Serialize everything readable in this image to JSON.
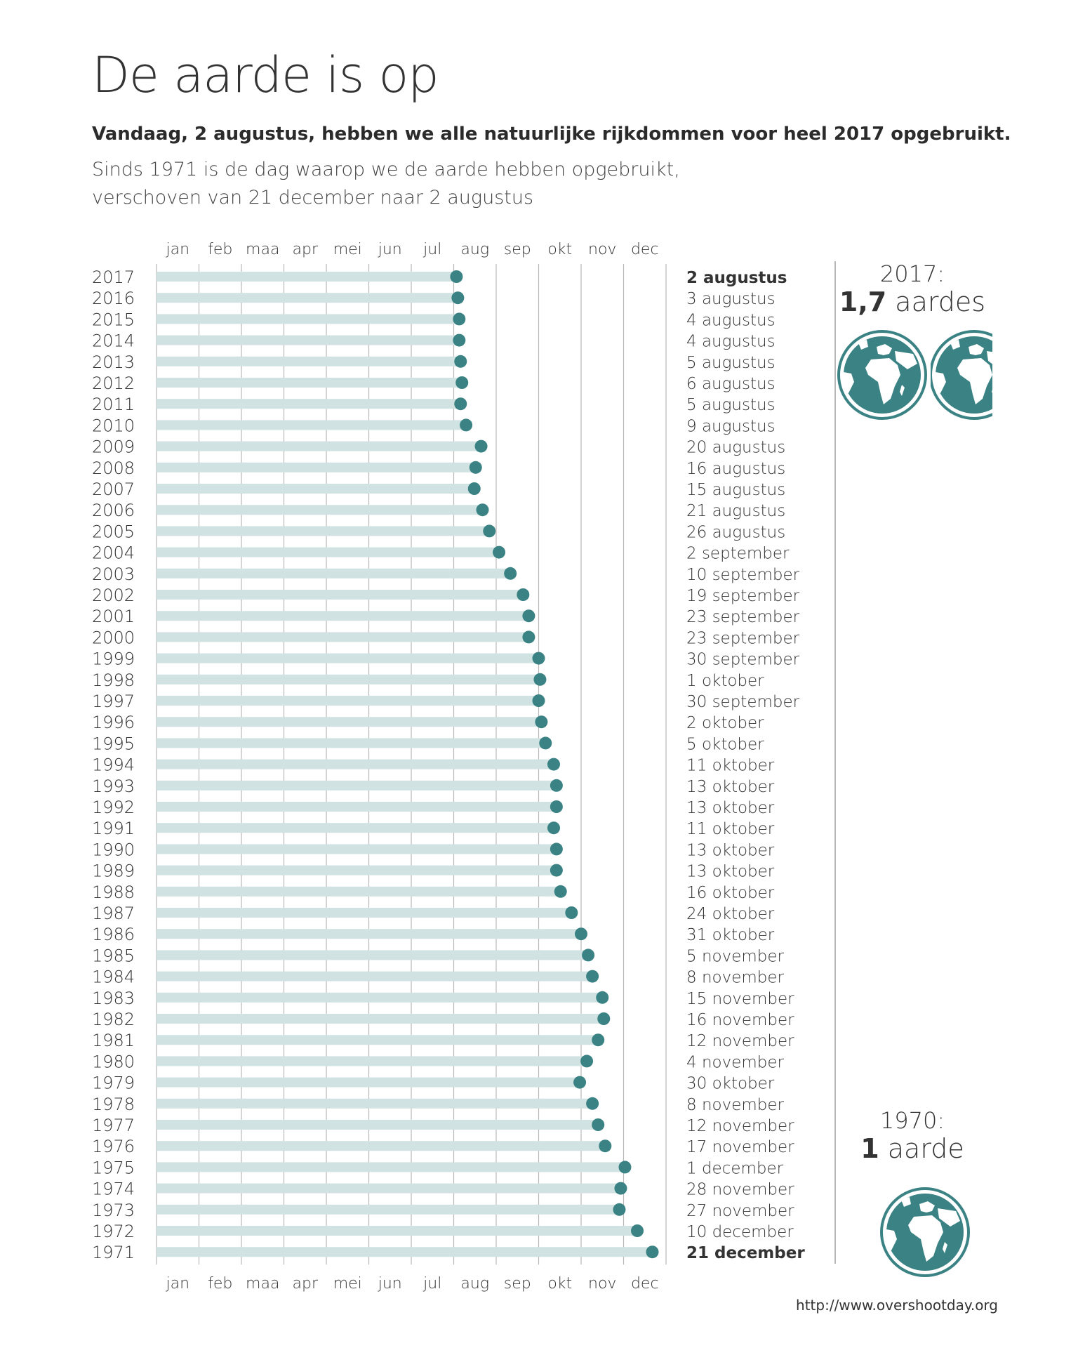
{
  "header": {
    "title": "De aarde is op",
    "subtitle": "Vandaag, 2 augustus, hebben we alle natuurlijke rijkdommen voor heel 2017 opgebruikt.",
    "intro_line1": "Sinds 1971 is de dag waarop we de aarde hebben opgebruikt,",
    "intro_line2": "verschoven van 21 december naar 2 augustus"
  },
  "side": {
    "top_year": "2017:",
    "top_value": "1,7",
    "top_unit": " aardes",
    "top_earths": 1.7,
    "bottom_year": "1970:",
    "bottom_value": "1",
    "bottom_unit": " aarde",
    "bottom_earths": 1
  },
  "source": "http://www.overshootday.org",
  "colors": {
    "accent": "#3a8283",
    "bar": "#d1e2e2",
    "gridline": "#b8b8b8",
    "text": "#333333"
  },
  "chart_data": {
    "type": "scatter",
    "months": [
      "jan",
      "feb",
      "maa",
      "apr",
      "mei",
      "jun",
      "jul",
      "aug",
      "sep",
      "okt",
      "nov",
      "dec"
    ],
    "rows": [
      {
        "year": "2017",
        "day": 214,
        "label": "2 augustus",
        "bold": true
      },
      {
        "year": "2016",
        "day": 215,
        "label": "3 augustus"
      },
      {
        "year": "2015",
        "day": 216,
        "label": "4 augustus"
      },
      {
        "year": "2014",
        "day": 216,
        "label": "4 augustus"
      },
      {
        "year": "2013",
        "day": 217,
        "label": "5 augustus"
      },
      {
        "year": "2012",
        "day": 218,
        "label": "6 augustus"
      },
      {
        "year": "2011",
        "day": 217,
        "label": "5 augustus"
      },
      {
        "year": "2010",
        "day": 221,
        "label": "9 augustus"
      },
      {
        "year": "2009",
        "day": 232,
        "label": "20 augustus"
      },
      {
        "year": "2008",
        "day": 228,
        "label": "16 augustus"
      },
      {
        "year": "2007",
        "day": 227,
        "label": "15 augustus"
      },
      {
        "year": "2006",
        "day": 233,
        "label": "21 augustus"
      },
      {
        "year": "2005",
        "day": 238,
        "label": "26 augustus"
      },
      {
        "year": "2004",
        "day": 245,
        "label": "2 september"
      },
      {
        "year": "2003",
        "day": 253,
        "label": "10 september"
      },
      {
        "year": "2002",
        "day": 262,
        "label": "19 september"
      },
      {
        "year": "2001",
        "day": 266,
        "label": "23 september"
      },
      {
        "year": "2000",
        "day": 266,
        "label": "23 september"
      },
      {
        "year": "1999",
        "day": 273,
        "label": "30 september"
      },
      {
        "year": "1998",
        "day": 274,
        "label": "1 oktober"
      },
      {
        "year": "1997",
        "day": 273,
        "label": "30 september"
      },
      {
        "year": "1996",
        "day": 275,
        "label": "2 oktober"
      },
      {
        "year": "1995",
        "day": 278,
        "label": "5 oktober"
      },
      {
        "year": "1994",
        "day": 284,
        "label": "11 oktober"
      },
      {
        "year": "1993",
        "day": 286,
        "label": "13 oktober"
      },
      {
        "year": "1992",
        "day": 286,
        "label": "13 oktober"
      },
      {
        "year": "1991",
        "day": 284,
        "label": "11 oktober"
      },
      {
        "year": "1990",
        "day": 286,
        "label": "13 oktober"
      },
      {
        "year": "1989",
        "day": 286,
        "label": "13 oktober"
      },
      {
        "year": "1988",
        "day": 289,
        "label": "16 oktober"
      },
      {
        "year": "1987",
        "day": 297,
        "label": "24 oktober"
      },
      {
        "year": "1986",
        "day": 304,
        "label": "31 oktober"
      },
      {
        "year": "1985",
        "day": 309,
        "label": "5 november"
      },
      {
        "year": "1984",
        "day": 312,
        "label": "8 november"
      },
      {
        "year": "1983",
        "day": 319,
        "label": "15 november"
      },
      {
        "year": "1982",
        "day": 320,
        "label": "16 november"
      },
      {
        "year": "1981",
        "day": 316,
        "label": "12 november"
      },
      {
        "year": "1980",
        "day": 308,
        "label": "4 november"
      },
      {
        "year": "1979",
        "day": 303,
        "label": "30 oktober"
      },
      {
        "year": "1978",
        "day": 312,
        "label": "8 november"
      },
      {
        "year": "1977",
        "day": 316,
        "label": "12 november"
      },
      {
        "year": "1976",
        "day": 321,
        "label": "17 november"
      },
      {
        "year": "1975",
        "day": 335,
        "label": "1 december"
      },
      {
        "year": "1974",
        "day": 332,
        "label": "28 november"
      },
      {
        "year": "1973",
        "day": 331,
        "label": "27 november"
      },
      {
        "year": "1972",
        "day": 344,
        "label": "10 december"
      },
      {
        "year": "1971",
        "day": 355,
        "label": "21 december",
        "bold": true
      }
    ]
  }
}
